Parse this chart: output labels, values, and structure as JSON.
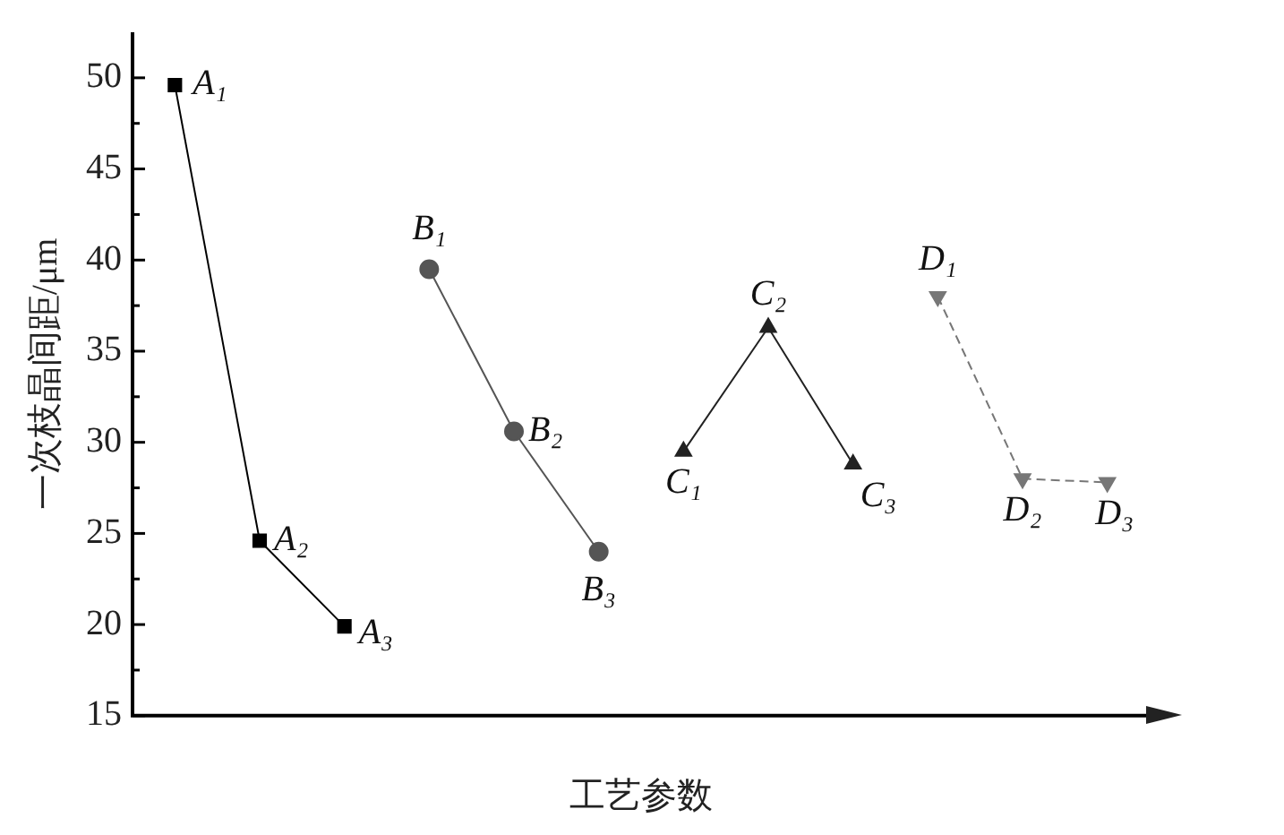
{
  "chart_data": {
    "type": "line",
    "xlabel": "工艺参数",
    "ylabel": "一次枝晶间距/μm",
    "categories": [
      null,
      null,
      null,
      null,
      null,
      null,
      null,
      null,
      null,
      null,
      null,
      null
    ],
    "series": [
      {
        "color": "#000000",
        "marker": "square",
        "values": [
          49.6,
          24.6,
          19.9,
          null,
          null,
          null,
          null,
          null,
          null,
          null,
          null,
          null
        ]
      },
      {
        "color": "#555555",
        "marker": "circle",
        "values": [
          null,
          null,
          null,
          39.5,
          30.6,
          24.0,
          null,
          null,
          null,
          null,
          null,
          null
        ]
      },
      {
        "color": "#222222",
        "marker": "triangle",
        "values": [
          null,
          null,
          null,
          null,
          null,
          null,
          29.5,
          36.3,
          28.8,
          null,
          null,
          null
        ]
      },
      {
        "color": "#777777",
        "marker": "triangle",
        "line_style": "dashed",
        "values": [
          null,
          null,
          null,
          null,
          null,
          null,
          null,
          null,
          null,
          38.0,
          28.0,
          27.8
        ]
      }
    ],
    "ylim": [
      15,
      52.5
    ],
    "yticks": [
      15,
      {
        "value": 17.5,
        "label": null
      },
      20,
      {
        "value": 22.5,
        "label": null
      },
      25,
      {
        "value": 27.5,
        "label": null
      },
      30,
      {
        "value": 32.5,
        "label": null
      },
      35,
      {
        "value": 37.5,
        "label": null
      },
      40,
      {
        "value": 42.5,
        "label": null
      },
      45,
      {
        "value": 47.5,
        "label": null
      },
      50
    ],
    "annotations": [
      "A₁",
      "A₂",
      "A₃",
      "B₁",
      "B₂",
      "B₃",
      "C₁",
      "C₂",
      "C₃",
      "D₁",
      "D₂",
      "D₃"
    ],
    "grid": false,
    "legend": false
  }
}
